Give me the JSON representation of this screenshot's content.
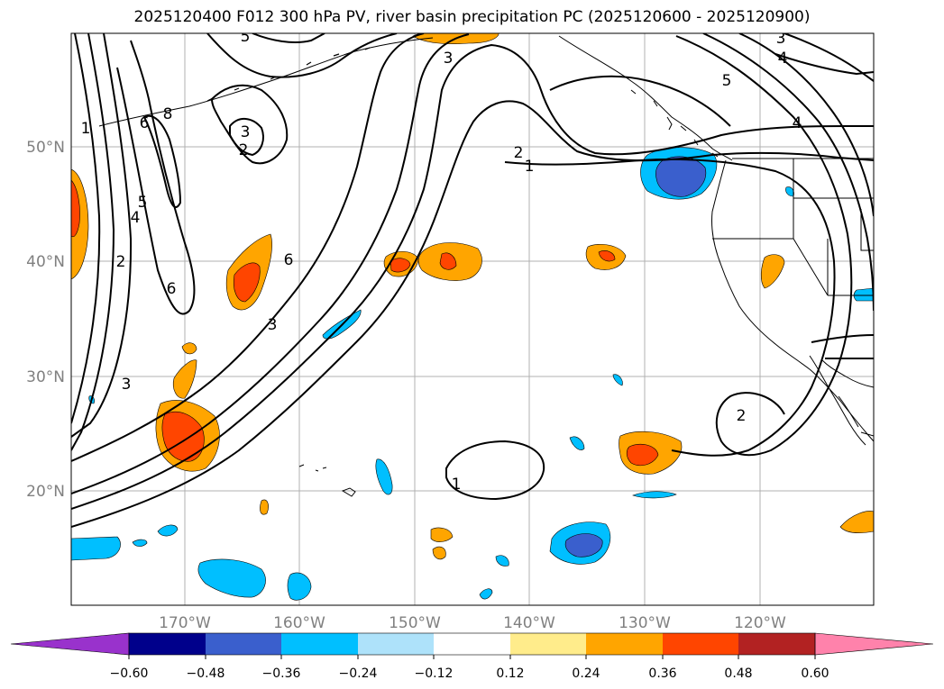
{
  "title": "2025120400 F012 300 hPa PV, river basin precipitation PC (2025120600 - 2025120900)",
  "lat_labels": [
    "50°N",
    "40°N",
    "30°N",
    "20°N"
  ],
  "lon_labels": [
    "170°W",
    "160°W",
    "150°W",
    "140°W",
    "130°W",
    "120°W"
  ],
  "contour_labels": [
    "5",
    "3",
    "3",
    "4",
    "5",
    "4",
    "1",
    "6",
    "8",
    "3",
    "2",
    "5",
    "4",
    "2",
    "6",
    "3",
    "6",
    "3",
    "2",
    "1",
    "2",
    "1"
  ],
  "colorbar": {
    "tick_labels": [
      "−0.60",
      "−0.48",
      "−0.36",
      "−0.24",
      "−0.12",
      "0.12",
      "0.24",
      "0.36",
      "0.48",
      "0.60"
    ],
    "colors": [
      "#9932CC",
      "#00008B",
      "#3A5FCD",
      "#00BFFF",
      "#AEE2FA",
      "#FFFFFF",
      "#FFEC8B",
      "#FFA500",
      "#FF4500",
      "#B22222",
      "#FF82AB"
    ]
  },
  "palette": {
    "neg_dark": "#3A5FCD",
    "neg_mid": "#00BFFF",
    "pos_mid": "#FFA500",
    "pos_dark": "#FF4500",
    "grid": "#b0b0b0",
    "tick_label": "#808080"
  }
}
